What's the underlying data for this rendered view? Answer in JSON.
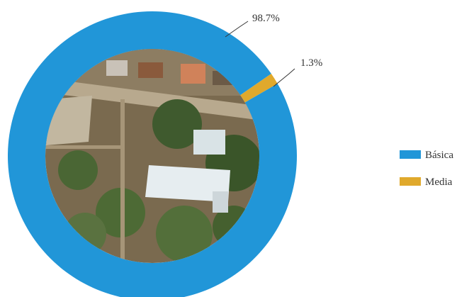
{
  "chart_data": {
    "type": "pie",
    "subtype": "donut",
    "categories": [
      "Básica",
      "Media"
    ],
    "values": [
      98.7,
      1.3
    ],
    "value_labels": [
      "98.7%",
      "1.3%"
    ],
    "colors": [
      "#2196d8",
      "#e0a92c"
    ],
    "legend": {
      "placement": "right",
      "entries": [
        "Básica",
        "Media"
      ]
    },
    "center": "aerial photograph of a school site"
  }
}
